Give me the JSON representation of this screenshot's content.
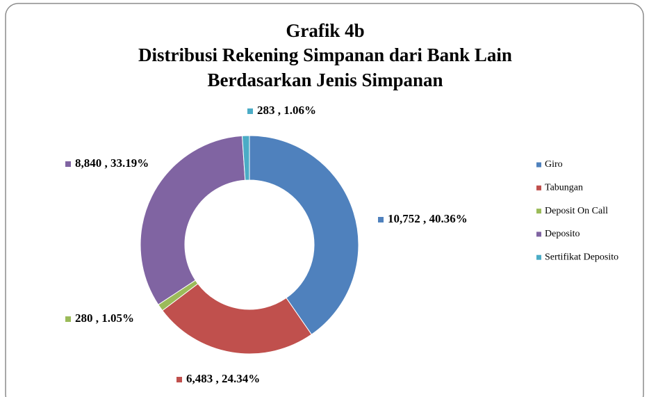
{
  "chart_data": {
    "type": "donut",
    "title": [
      "Grafik 4b",
      "Distribusi Rekening Simpanan dari Bank Lain",
      "Berdasarkan Jenis Simpanan"
    ],
    "categories": [
      "Giro",
      "Tabungan",
      "Deposit On Call",
      "Deposito",
      "Sertifikat Deposito"
    ],
    "values": [
      10752,
      6483,
      280,
      8840,
      283
    ],
    "value_labels": [
      "10,752 , 40.36%",
      "6,483 , 24.34%",
      "280 , 1.05%",
      "8,840 , 33.19%",
      "283 , 1.06%"
    ],
    "colors": [
      "#4f81bd",
      "#c0504d",
      "#9bbb59",
      "#8064a2",
      "#4bacc6"
    ],
    "legend": "right"
  }
}
